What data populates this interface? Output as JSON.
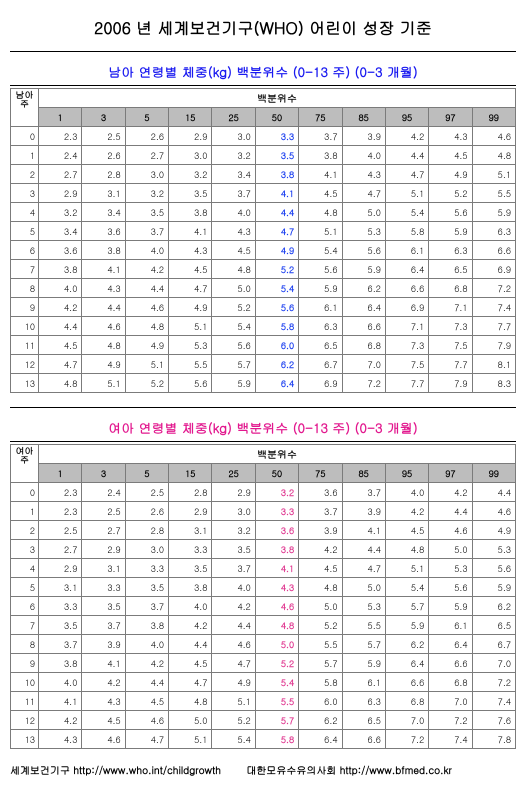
{
  "title": "2006 년 세계보건기구(WHO) 어린이 성장 기준",
  "boys_title": "남아 연령별 체중(kg) 백분위수 (0-13 주) (0-3 개월)",
  "girls_title": "여아 연령별 체중(kg) 백분위수 (0-13 주) (0-3 개월)",
  "boys_corner": "남아",
  "girls_corner": "여아",
  "row_label": "주",
  "pct_label": "백분위수",
  "percentiles": [
    "1",
    "3",
    "5",
    "15",
    "25",
    "50",
    "75",
    "85",
    "95",
    "97",
    "99"
  ],
  "boys_rows": [
    [
      "0",
      "2.3",
      "2.5",
      "2.6",
      "2.9",
      "3.0",
      "3.3",
      "3.7",
      "3.9",
      "4.2",
      "4.3",
      "4.6"
    ],
    [
      "1",
      "2.4",
      "2.6",
      "2.7",
      "3.0",
      "3.2",
      "3.5",
      "3.8",
      "4.0",
      "4.4",
      "4.5",
      "4.8"
    ],
    [
      "2",
      "2.7",
      "2.8",
      "3.0",
      "3.2",
      "3.4",
      "3.8",
      "4.1",
      "4.3",
      "4.7",
      "4.9",
      "5.1"
    ],
    [
      "3",
      "2.9",
      "3.1",
      "3.2",
      "3.5",
      "3.7",
      "4.1",
      "4.5",
      "4.7",
      "5.1",
      "5.2",
      "5.5"
    ],
    [
      "4",
      "3.2",
      "3.4",
      "3.5",
      "3.8",
      "4.0",
      "4.4",
      "4.8",
      "5.0",
      "5.4",
      "5.6",
      "5.9"
    ],
    [
      "5",
      "3.4",
      "3.6",
      "3.7",
      "4.1",
      "4.3",
      "4.7",
      "5.1",
      "5.3",
      "5.8",
      "5.9",
      "6.3"
    ],
    [
      "6",
      "3.6",
      "3.8",
      "4.0",
      "4.3",
      "4.5",
      "4.9",
      "5.4",
      "5.6",
      "6.1",
      "6.3",
      "6.6"
    ],
    [
      "7",
      "3.8",
      "4.1",
      "4.2",
      "4.5",
      "4.8",
      "5.2",
      "5.6",
      "5.9",
      "6.4",
      "6.5",
      "6.9"
    ],
    [
      "8",
      "4.0",
      "4.3",
      "4.4",
      "4.7",
      "5.0",
      "5.4",
      "5.9",
      "6.2",
      "6.6",
      "6.8",
      "7.2"
    ],
    [
      "9",
      "4.2",
      "4.4",
      "4.6",
      "4.9",
      "5.2",
      "5.6",
      "6.1",
      "6.4",
      "6.9",
      "7.1",
      "7.4"
    ],
    [
      "10",
      "4.4",
      "4.6",
      "4.8",
      "5.1",
      "5.4",
      "5.8",
      "6.3",
      "6.6",
      "7.1",
      "7.3",
      "7.7"
    ],
    [
      "11",
      "4.5",
      "4.8",
      "4.9",
      "5.3",
      "5.6",
      "6.0",
      "6.5",
      "6.8",
      "7.3",
      "7.5",
      "7.9"
    ],
    [
      "12",
      "4.7",
      "4.9",
      "5.1",
      "5.5",
      "5.7",
      "6.2",
      "6.7",
      "7.0",
      "7.5",
      "7.7",
      "8.1"
    ],
    [
      "13",
      "4.8",
      "5.1",
      "5.2",
      "5.6",
      "5.9",
      "6.4",
      "6.9",
      "7.2",
      "7.7",
      "7.9",
      "8.3"
    ]
  ],
  "girls_rows": [
    [
      "0",
      "2.3",
      "2.4",
      "2.5",
      "2.8",
      "2.9",
      "3.2",
      "3.6",
      "3.7",
      "4.0",
      "4.2",
      "4.4"
    ],
    [
      "1",
      "2.3",
      "2.5",
      "2.6",
      "2.9",
      "3.0",
      "3.3",
      "3.7",
      "3.9",
      "4.2",
      "4.4",
      "4.6"
    ],
    [
      "2",
      "2.5",
      "2.7",
      "2.8",
      "3.1",
      "3.2",
      "3.6",
      "3.9",
      "4.1",
      "4.5",
      "4.6",
      "4.9"
    ],
    [
      "3",
      "2.7",
      "2.9",
      "3.0",
      "3.3",
      "3.5",
      "3.8",
      "4.2",
      "4.4",
      "4.8",
      "5.0",
      "5.3"
    ],
    [
      "4",
      "2.9",
      "3.1",
      "3.3",
      "3.5",
      "3.7",
      "4.1",
      "4.5",
      "4.7",
      "5.1",
      "5.3",
      "5.6"
    ],
    [
      "5",
      "3.1",
      "3.3",
      "3.5",
      "3.8",
      "4.0",
      "4.3",
      "4.8",
      "5.0",
      "5.4",
      "5.6",
      "5.9"
    ],
    [
      "6",
      "3.3",
      "3.5",
      "3.7",
      "4.0",
      "4.2",
      "4.6",
      "5.0",
      "5.3",
      "5.7",
      "5.9",
      "6.2"
    ],
    [
      "7",
      "3.5",
      "3.7",
      "3.8",
      "4.2",
      "4.4",
      "4.8",
      "5.2",
      "5.5",
      "5.9",
      "6.1",
      "6.5"
    ],
    [
      "8",
      "3.7",
      "3.9",
      "4.0",
      "4.4",
      "4.6",
      "5.0",
      "5.5",
      "5.7",
      "6.2",
      "6.4",
      "6.7"
    ],
    [
      "9",
      "3.8",
      "4.1",
      "4.2",
      "4.5",
      "4.7",
      "5.2",
      "5.7",
      "5.9",
      "6.4",
      "6.6",
      "7.0"
    ],
    [
      "10",
      "4.0",
      "4.2",
      "4.4",
      "4.7",
      "4.9",
      "5.4",
      "5.8",
      "6.1",
      "6.6",
      "6.8",
      "7.2"
    ],
    [
      "11",
      "4.1",
      "4.3",
      "4.5",
      "4.8",
      "5.1",
      "5.5",
      "6.0",
      "6.3",
      "6.8",
      "7.0",
      "7.4"
    ],
    [
      "12",
      "4.2",
      "4.5",
      "4.6",
      "5.0",
      "5.2",
      "5.7",
      "6.2",
      "6.5",
      "7.0",
      "7.2",
      "7.6"
    ],
    [
      "13",
      "4.3",
      "4.6",
      "4.7",
      "5.1",
      "5.4",
      "5.8",
      "6.4",
      "6.6",
      "7.2",
      "7.4",
      "7.8"
    ]
  ],
  "footer_left": "세계보건기구 http://www.who.int/childgrowth",
  "footer_right": "대한모유수유의사회 http://www.bfmed.co.kr"
}
